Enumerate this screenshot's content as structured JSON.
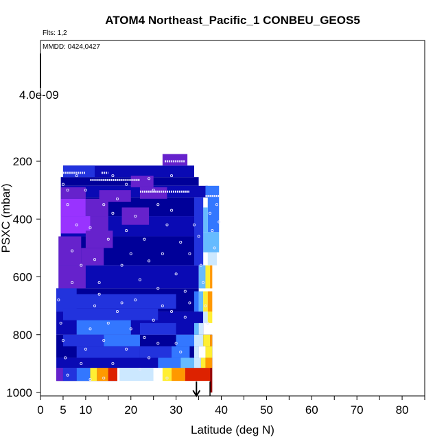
{
  "chart_data": {
    "type": "heatmap",
    "title": "ATOM4 Northeast_Pacific_1 CONBEU_GEOS5",
    "flights_note": "Flts: 1,2",
    "dates_note": "MMDD: 0424,0427",
    "xlabel": "Latitude (deg N)",
    "ylabel": "PSXC (mbar)",
    "xlim": [
      0,
      85
    ],
    "ylim": [
      1000,
      0
    ],
    "x_ticks": [
      0,
      5,
      10,
      20,
      30,
      40,
      50,
      60,
      70,
      80
    ],
    "y_ticks": [
      200,
      400,
      600,
      800,
      1000
    ],
    "scale_label": "4.0e-09",
    "arrow_markers_lat": [
      34.5,
      37.5
    ],
    "colors": {
      "violet": "#9933ff",
      "purple": "#6622cc",
      "deep_blue": "#0a0ab4",
      "navy": "#000099",
      "blue": "#2233dd",
      "mid_blue": "#3377ff",
      "light_blue": "#66bbff",
      "pale_blue": "#cce8ff",
      "white": "#ffffff",
      "yellow": "#ffee33",
      "orange": "#ff9900",
      "red": "#dd2200",
      "dark_red": "#990000",
      "sample_dot": "#e6e6ff"
    },
    "cells": [
      {
        "x0": 27,
        "x1": 32.5,
        "y0": 175,
        "y1": 215,
        "c": "purple"
      },
      {
        "x0": 5,
        "x1": 34,
        "y0": 215,
        "y1": 255,
        "c": "deep_blue"
      },
      {
        "x0": 4.5,
        "x1": 35,
        "y0": 255,
        "y1": 285,
        "c": "navy"
      },
      {
        "x0": 4.5,
        "x1": 37,
        "y0": 285,
        "y1": 325,
        "c": "deep_blue"
      },
      {
        "x0": 4.5,
        "x1": 34,
        "y0": 325,
        "y1": 390,
        "c": "navy"
      },
      {
        "x0": 4.5,
        "x1": 34,
        "y0": 390,
        "y1": 460,
        "c": "deep_blue"
      },
      {
        "x0": 4,
        "x1": 34,
        "y0": 460,
        "y1": 560,
        "c": "navy"
      },
      {
        "x0": 4,
        "x1": 35,
        "y0": 560,
        "y1": 640,
        "c": "deep_blue"
      },
      {
        "x0": 3.5,
        "x1": 35,
        "y0": 640,
        "y1": 720,
        "c": "navy"
      },
      {
        "x0": 3.5,
        "x1": 36,
        "y0": 720,
        "y1": 800,
        "c": "deep_blue"
      },
      {
        "x0": 3.5,
        "x1": 38,
        "y0": 800,
        "y1": 880,
        "c": "navy"
      },
      {
        "x0": 3.5,
        "x1": 38,
        "y0": 880,
        "y1": 915,
        "c": "deep_blue"
      },
      {
        "x0": 3.5,
        "x1": 17,
        "y0": 915,
        "y1": 960,
        "c": "navy"
      },
      {
        "x0": 5,
        "x1": 12,
        "y0": 215,
        "y1": 255,
        "c": "blue"
      },
      {
        "x0": 4.5,
        "x1": 10,
        "y0": 290,
        "y1": 330,
        "c": "purple"
      },
      {
        "x0": 4.5,
        "x1": 10,
        "y0": 330,
        "y1": 390,
        "c": "violet"
      },
      {
        "x0": 10,
        "x1": 15,
        "y0": 330,
        "y1": 390,
        "c": "purple"
      },
      {
        "x0": 4.5,
        "x1": 11,
        "y0": 390,
        "y1": 450,
        "c": "violet"
      },
      {
        "x0": 11,
        "x1": 15,
        "y0": 390,
        "y1": 450,
        "c": "purple"
      },
      {
        "x0": 4,
        "x1": 9,
        "y0": 460,
        "y1": 560,
        "c": "purple"
      },
      {
        "x0": 9,
        "x1": 14,
        "y0": 500,
        "y1": 560,
        "c": "purple"
      },
      {
        "x0": 4,
        "x1": 10,
        "y0": 560,
        "y1": 640,
        "c": "purple"
      },
      {
        "x0": 3.5,
        "x1": 8,
        "y0": 640,
        "y1": 720,
        "c": "blue"
      },
      {
        "x0": 20,
        "x1": 25,
        "y0": 250,
        "y1": 290,
        "c": "purple"
      },
      {
        "x0": 22,
        "x1": 28,
        "y0": 290,
        "y1": 330,
        "c": "purple"
      },
      {
        "x0": 13,
        "x1": 20,
        "y0": 300,
        "y1": 340,
        "c": "purple"
      },
      {
        "x0": 18,
        "x1": 24,
        "y0": 360,
        "y1": 420,
        "c": "purple"
      },
      {
        "x0": 10,
        "x1": 16,
        "y0": 440,
        "y1": 500,
        "c": "purple"
      },
      {
        "x0": 5,
        "x1": 30,
        "y0": 660,
        "y1": 710,
        "c": "blue"
      },
      {
        "x0": 5,
        "x1": 26,
        "y0": 710,
        "y1": 750,
        "c": "blue"
      },
      {
        "x0": 8,
        "x1": 20,
        "y0": 750,
        "y1": 800,
        "c": "mid_blue"
      },
      {
        "x0": 22,
        "x1": 30,
        "y0": 760,
        "y1": 800,
        "c": "blue"
      },
      {
        "x0": 5,
        "x1": 14,
        "y0": 800,
        "y1": 840,
        "c": "blue"
      },
      {
        "x0": 14,
        "x1": 22,
        "y0": 800,
        "y1": 840,
        "c": "mid_blue"
      },
      {
        "x0": 8,
        "x1": 22,
        "y0": 840,
        "y1": 880,
        "c": "blue"
      },
      {
        "x0": 22,
        "x1": 29,
        "y0": 840,
        "y1": 880,
        "c": "blue"
      },
      {
        "x0": 29,
        "x1": 33,
        "y0": 840,
        "y1": 880,
        "c": "mid_blue"
      },
      {
        "x0": 26,
        "x1": 31,
        "y0": 880,
        "y1": 915,
        "c": "mid_blue"
      },
      {
        "x0": 31,
        "x1": 34,
        "y0": 880,
        "y1": 915,
        "c": "light_blue"
      },
      {
        "x0": 30,
        "x1": 34,
        "y0": 800,
        "y1": 840,
        "c": "mid_blue"
      },
      {
        "x0": 34,
        "x1": 36,
        "y0": 800,
        "y1": 840,
        "c": "pale_blue"
      },
      {
        "x0": 36,
        "x1": 37.5,
        "y0": 800,
        "y1": 840,
        "c": "yellow"
      },
      {
        "x0": 37.5,
        "x1": 38,
        "y0": 800,
        "y1": 840,
        "c": "orange"
      },
      {
        "x0": 34,
        "x1": 35,
        "y0": 840,
        "y1": 880,
        "c": "pale_blue"
      },
      {
        "x0": 35,
        "x1": 36.5,
        "y0": 840,
        "y1": 880,
        "c": "white"
      },
      {
        "x0": 36.5,
        "x1": 38,
        "y0": 840,
        "y1": 880,
        "c": "yellow"
      },
      {
        "x0": 34,
        "x1": 35.5,
        "y0": 880,
        "y1": 915,
        "c": "pale_blue"
      },
      {
        "x0": 35.5,
        "x1": 36.5,
        "y0": 880,
        "y1": 915,
        "c": "yellow"
      },
      {
        "x0": 36.5,
        "x1": 38,
        "y0": 880,
        "y1": 915,
        "c": "orange"
      },
      {
        "x0": 34,
        "x1": 35,
        "y0": 760,
        "y1": 800,
        "c": "light_blue"
      },
      {
        "x0": 35,
        "x1": 36,
        "y0": 760,
        "y1": 800,
        "c": "pale_blue"
      },
      {
        "x0": 36,
        "x1": 37,
        "y0": 720,
        "y1": 760,
        "c": "pale_blue"
      },
      {
        "x0": 37,
        "x1": 38,
        "y0": 720,
        "y1": 760,
        "c": "yellow"
      },
      {
        "x0": 34,
        "x1": 35,
        "y0": 650,
        "y1": 720,
        "c": "mid_blue"
      },
      {
        "x0": 35,
        "x1": 36,
        "y0": 650,
        "y1": 720,
        "c": "light_blue"
      },
      {
        "x0": 36,
        "x1": 37,
        "y0": 650,
        "y1": 720,
        "c": "yellow"
      },
      {
        "x0": 37,
        "x1": 38,
        "y0": 650,
        "y1": 720,
        "c": "orange"
      },
      {
        "x0": 35,
        "x1": 36.5,
        "y0": 560,
        "y1": 640,
        "c": "light_blue"
      },
      {
        "x0": 36.5,
        "x1": 37.5,
        "y0": 560,
        "y1": 640,
        "c": "yellow"
      },
      {
        "x0": 37.5,
        "x1": 38,
        "y0": 560,
        "y1": 640,
        "c": "orange"
      },
      {
        "x0": 37,
        "x1": 39,
        "y0": 515,
        "y1": 560,
        "c": "pale_blue"
      },
      {
        "x0": 36,
        "x1": 39.5,
        "y0": 445,
        "y1": 515,
        "c": "light_blue"
      },
      {
        "x0": 37,
        "x1": 39.5,
        "y0": 325,
        "y1": 445,
        "c": "mid_blue"
      },
      {
        "x0": 36,
        "x1": 37,
        "y0": 360,
        "y1": 445,
        "c": "light_blue"
      },
      {
        "x0": 36.5,
        "x1": 39.5,
        "y0": 285,
        "y1": 325,
        "c": "mid_blue"
      },
      {
        "x0": 34,
        "x1": 36,
        "y0": 325,
        "y1": 560,
        "c": "blue"
      },
      {
        "x0": 3.5,
        "x1": 5,
        "y0": 915,
        "y1": 960,
        "c": "purple"
      },
      {
        "x0": 5,
        "x1": 8,
        "y0": 915,
        "y1": 960,
        "c": "blue"
      },
      {
        "x0": 8,
        "x1": 11,
        "y0": 915,
        "y1": 960,
        "c": "mid_blue"
      },
      {
        "x0": 11,
        "x1": 12.5,
        "y0": 915,
        "y1": 960,
        "c": "yellow"
      },
      {
        "x0": 12.5,
        "x1": 15,
        "y0": 915,
        "y1": 960,
        "c": "orange"
      },
      {
        "x0": 15,
        "x1": 17,
        "y0": 915,
        "y1": 960,
        "c": "red"
      },
      {
        "x0": 17.5,
        "x1": 25,
        "y0": 915,
        "y1": 960,
        "c": "pale_blue"
      },
      {
        "x0": 25,
        "x1": 27,
        "y0": 915,
        "y1": 960,
        "c": "white"
      },
      {
        "x0": 27,
        "x1": 29,
        "y0": 915,
        "y1": 960,
        "c": "yellow"
      },
      {
        "x0": 29,
        "x1": 32,
        "y0": 915,
        "y1": 960,
        "c": "orange"
      },
      {
        "x0": 32,
        "x1": 37.5,
        "y0": 915,
        "y1": 960,
        "c": "red"
      },
      {
        "x0": 37.5,
        "x1": 38,
        "y0": 915,
        "y1": 1000,
        "c": "dark_red"
      }
    ],
    "sample_tracks": [
      {
        "x0": 5,
        "x1": 10,
        "y": 240
      },
      {
        "x0": 13.5,
        "x1": 15,
        "y": 240
      },
      {
        "x0": 11,
        "x1": 22,
        "y": 265
      },
      {
        "x0": 22,
        "x1": 33,
        "y": 305
      },
      {
        "x0": 27.5,
        "x1": 32,
        "y": 200
      },
      {
        "x0": 36.5,
        "x1": 39.5,
        "y": 320
      }
    ],
    "sample_points": [
      [
        5,
        280
      ],
      [
        6,
        350
      ],
      [
        8,
        420
      ],
      [
        7,
        510
      ],
      [
        9,
        560
      ],
      [
        10,
        300
      ],
      [
        11,
        430
      ],
      [
        12,
        540
      ],
      [
        13,
        620
      ],
      [
        14,
        350
      ],
      [
        15,
        470
      ],
      [
        16,
        380
      ],
      [
        17,
        330
      ],
      [
        18,
        560
      ],
      [
        19,
        440
      ],
      [
        20,
        520
      ],
      [
        21,
        390
      ],
      [
        22,
        610
      ],
      [
        23,
        470
      ],
      [
        24,
        545
      ],
      [
        25,
        300
      ],
      [
        26,
        640
      ],
      [
        27,
        520
      ],
      [
        28,
        420
      ],
      [
        29,
        370
      ],
      [
        30,
        590
      ],
      [
        31,
        480
      ],
      [
        32,
        650
      ],
      [
        33,
        520
      ],
      [
        34,
        420
      ],
      [
        35,
        460
      ],
      [
        35.5,
        560
      ],
      [
        36,
        620
      ],
      [
        36.5,
        700
      ],
      [
        37,
        760
      ],
      [
        37.5,
        380
      ],
      [
        38,
        440
      ],
      [
        38.5,
        500
      ],
      [
        39,
        350
      ],
      [
        39.5,
        410
      ],
      [
        4,
        680
      ],
      [
        4.5,
        760
      ],
      [
        5,
        820
      ],
      [
        5.5,
        880
      ],
      [
        6,
        940
      ],
      [
        9,
        900
      ],
      [
        10,
        850
      ],
      [
        11,
        780
      ],
      [
        12,
        700
      ],
      [
        13,
        660
      ],
      [
        14,
        820
      ],
      [
        15,
        760
      ],
      [
        16,
        900
      ],
      [
        17,
        720
      ],
      [
        18,
        690
      ],
      [
        19,
        850
      ],
      [
        20,
        780
      ],
      [
        21,
        680
      ],
      [
        22,
        920
      ],
      [
        23,
        810
      ],
      [
        24,
        880
      ],
      [
        25,
        750
      ],
      [
        26,
        830
      ],
      [
        27,
        700
      ],
      [
        28,
        950
      ],
      [
        29,
        720
      ],
      [
        30,
        830
      ],
      [
        31,
        860
      ],
      [
        32,
        740
      ],
      [
        33,
        690
      ],
      [
        16,
        250
      ],
      [
        19,
        280
      ],
      [
        24,
        260
      ],
      [
        26,
        350
      ],
      [
        29,
        250
      ],
      [
        8,
        250
      ],
      [
        6,
        300
      ],
      [
        7,
        620
      ],
      [
        11,
        955
      ],
      [
        14,
        950
      ]
    ]
  }
}
